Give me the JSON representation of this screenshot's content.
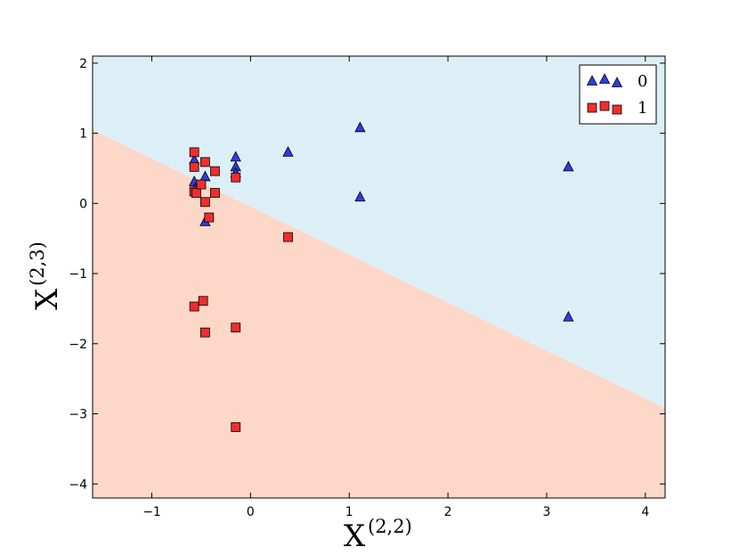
{
  "chart_data": {
    "type": "scatter",
    "xlim": [
      -1.6,
      4.2
    ],
    "ylim": [
      -4.2,
      2.1
    ],
    "x_ticks": [
      -1,
      0,
      1,
      2,
      3,
      4
    ],
    "y_ticks": [
      -4,
      -3,
      -2,
      -1,
      0,
      1,
      2
    ],
    "x_tick_labels": [
      "−1",
      "0",
      "1",
      "2",
      "3",
      "4"
    ],
    "y_tick_labels": [
      "−4",
      "−3",
      "−2",
      "−1",
      "0",
      "1",
      "2"
    ],
    "xlabel": {
      "base": "X",
      "sup": "(2,2)"
    },
    "ylabel": {
      "base": "X",
      "sup": "(2,3)"
    },
    "grid": false,
    "legend": {
      "position": "top-right",
      "markers_per_entry": 3
    },
    "decision_boundary": {
      "line": [
        [
          -1.6,
          1.05
        ],
        [
          4.2,
          -2.92
        ]
      ],
      "region_above_color": "#ddeff6",
      "region_below_color": "#fdd7c8"
    },
    "series": [
      {
        "name": "0",
        "marker": "triangle",
        "color": "#2d3de0",
        "points": [
          [
            -0.57,
            0.62
          ],
          [
            -0.57,
            0.31
          ],
          [
            -0.56,
            0.21
          ],
          [
            -0.46,
            0.38
          ],
          [
            -0.46,
            -0.26
          ],
          [
            -0.15,
            0.66
          ],
          [
            -0.15,
            0.52
          ],
          [
            -0.15,
            0.43
          ],
          [
            0.38,
            0.73
          ],
          [
            1.11,
            1.08
          ],
          [
            1.11,
            0.09
          ],
          [
            3.22,
            0.52
          ],
          [
            3.22,
            -1.62
          ]
        ]
      },
      {
        "name": "1",
        "marker": "square",
        "color": "#f02d2d",
        "points": [
          [
            -0.57,
            0.73
          ],
          [
            -0.57,
            0.52
          ],
          [
            -0.57,
            0.17
          ],
          [
            -0.55,
            0.15
          ],
          [
            -0.5,
            0.27
          ],
          [
            -0.46,
            0.59
          ],
          [
            -0.46,
            0.02
          ],
          [
            -0.42,
            -0.2
          ],
          [
            -0.36,
            0.46
          ],
          [
            -0.36,
            0.15
          ],
          [
            -0.15,
            0.37
          ],
          [
            0.38,
            -0.48
          ],
          [
            -0.57,
            -1.47
          ],
          [
            -0.48,
            -1.39
          ],
          [
            -0.46,
            -1.84
          ],
          [
            -0.15,
            -1.77
          ],
          [
            -0.15,
            -3.19
          ]
        ]
      }
    ]
  }
}
